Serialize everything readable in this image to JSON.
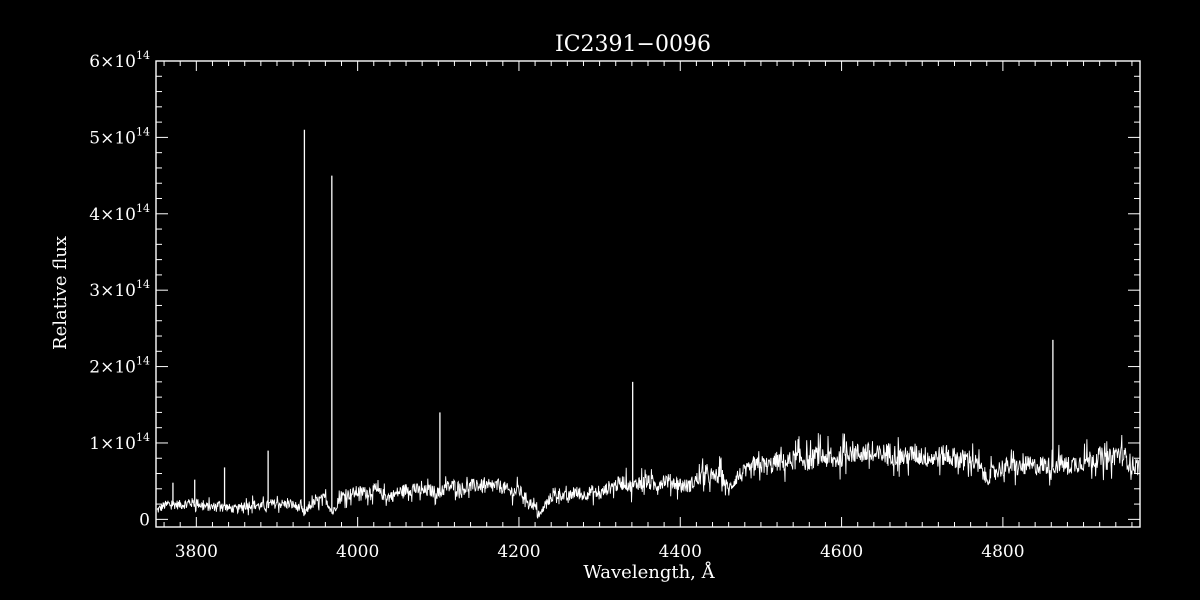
{
  "chart_data": {
    "type": "line",
    "title": "IC2391−0096",
    "xlabel": "Wavelength, Å",
    "ylabel": "Relative flux",
    "xlim": [
      3750,
      4970
    ],
    "ylim": [
      -10000000000000.0,
      600000000000000.0
    ],
    "x_ticks": [
      3800,
      4000,
      4200,
      4400,
      4600,
      4800
    ],
    "x_tick_labels": [
      "3800",
      "4000",
      "4200",
      "4400",
      "4600",
      "4800"
    ],
    "y_ticks": [
      0,
      100000000000000.0,
      200000000000000.0,
      300000000000000.0,
      400000000000000.0,
      500000000000000.0,
      600000000000000.0
    ],
    "y_tick_labels": [
      {
        "mantissa": "0",
        "exponent": ""
      },
      {
        "mantissa": "1×10",
        "exponent": "14"
      },
      {
        "mantissa": "2×10",
        "exponent": "14"
      },
      {
        "mantissa": "3×10",
        "exponent": "14"
      },
      {
        "mantissa": "4×10",
        "exponent": "14"
      },
      {
        "mantissa": "5×10",
        "exponent": "14"
      },
      {
        "mantissa": "6×10",
        "exponent": "14"
      }
    ],
    "grid": false,
    "line_color": "#ffffff",
    "background": "#000000",
    "series": [
      {
        "wavelength": [
          3752,
          3760,
          3770,
          3780,
          3790,
          3800,
          3810,
          3820,
          3830,
          3840,
          3850,
          3860,
          3870,
          3880,
          3890,
          3900,
          3910,
          3920,
          3930,
          3934,
          3940,
          3950,
          3960,
          3969,
          3975,
          3980,
          3990,
          4000,
          4010,
          4020,
          4030,
          4040,
          4050,
          4060,
          4070,
          4080,
          4090,
          4101,
          4110,
          4120,
          4130,
          4140,
          4150,
          4160,
          4170,
          4180,
          4190,
          4200,
          4210,
          4220,
          4226,
          4232,
          4240,
          4250,
          4260,
          4270,
          4280,
          4290,
          4300,
          4310,
          4320,
          4330,
          4340,
          4350,
          4360,
          4370,
          4380,
          4390,
          4400,
          4410,
          4420,
          4430,
          4440,
          4450,
          4460,
          4470,
          4480,
          4490,
          4500,
          4510,
          4520,
          4530,
          4540,
          4550,
          4560,
          4570,
          4580,
          4590,
          4600,
          4610,
          4620,
          4630,
          4640,
          4650,
          4660,
          4670,
          4680,
          4690,
          4700,
          4710,
          4720,
          4730,
          4740,
          4750,
          4760,
          4770,
          4780,
          4790,
          4800,
          4810,
          4820,
          4830,
          4840,
          4850,
          4861,
          4870,
          4880,
          4890,
          4900,
          4910,
          4920,
          4930,
          4940,
          4950,
          4960,
          4970
        ],
        "flux": [
          12000000000000.0,
          18000000000000.0,
          20000000000000.0,
          19000000000000.0,
          21000000000000.0,
          22000000000000.0,
          17000000000000.0,
          16000000000000.0,
          20000000000000.0,
          15000000000000.0,
          13000000000000.0,
          18000000000000.0,
          20000000000000.0,
          17000000000000.0,
          19000000000000.0,
          21000000000000.0,
          20000000000000.0,
          19000000000000.0,
          14000000000000.0,
          6000000000000.0,
          17000000000000.0,
          24000000000000.0,
          28000000000000.0,
          8000000000000.0,
          22000000000000.0,
          30000000000000.0,
          33000000000000.0,
          36000000000000.0,
          35000000000000.0,
          38000000000000.0,
          33000000000000.0,
          29000000000000.0,
          35000000000000.0,
          39000000000000.0,
          40000000000000.0,
          36000000000000.0,
          38000000000000.0,
          34000000000000.0,
          42000000000000.0,
          44000000000000.0,
          40000000000000.0,
          43000000000000.0,
          45000000000000.0,
          41000000000000.0,
          44000000000000.0,
          42000000000000.0,
          36000000000000.0,
          38000000000000.0,
          26000000000000.0,
          16000000000000.0,
          4000000000000.0,
          18000000000000.0,
          29000000000000.0,
          34000000000000.0,
          28000000000000.0,
          36000000000000.0,
          31000000000000.0,
          37000000000000.0,
          32000000000000.0,
          41000000000000.0,
          45000000000000.0,
          49000000000000.0,
          42000000000000.0,
          50000000000000.0,
          48000000000000.0,
          44000000000000.0,
          52000000000000.0,
          49000000000000.0,
          46000000000000.0,
          43000000000000.0,
          52000000000000.0,
          58000000000000.0,
          54000000000000.0,
          60000000000000.0,
          38000000000000.0,
          56000000000000.0,
          61000000000000.0,
          66000000000000.0,
          72000000000000.0,
          69000000000000.0,
          76000000000000.0,
          73000000000000.0,
          78000000000000.0,
          80000000000000.0,
          75000000000000.0,
          84000000000000.0,
          81000000000000.0,
          76000000000000.0,
          83000000000000.0,
          90000000000000.0,
          86000000000000.0,
          88000000000000.0,
          82000000000000.0,
          85000000000000.0,
          87000000000000.0,
          83000000000000.0,
          81000000000000.0,
          86000000000000.0,
          83000000000000.0,
          80000000000000.0,
          82000000000000.0,
          84000000000000.0,
          81000000000000.0,
          78000000000000.0,
          79000000000000.0,
          69000000000000.0,
          54000000000000.0,
          63000000000000.0,
          68000000000000.0,
          70000000000000.0,
          67000000000000.0,
          71000000000000.0,
          69000000000000.0,
          72000000000000.0,
          68000000000000.0,
          74000000000000.0,
          70000000000000.0,
          73000000000000.0,
          76000000000000.0,
          79000000000000.0,
          82000000000000.0,
          77000000000000.0,
          86000000000000.0,
          83000000000000.0,
          71000000000000.0,
          69000000000000.0
        ]
      }
    ],
    "emission_lines": [
      {
        "wavelength": 3771,
        "peak": 48000000000000.0
      },
      {
        "wavelength": 3798,
        "peak": 52000000000000.0
      },
      {
        "wavelength": 3835,
        "peak": 68000000000000.0
      },
      {
        "wavelength": 3889,
        "peak": 90000000000000.0
      },
      {
        "wavelength": 3934,
        "peak": 510000000000000.0
      },
      {
        "wavelength": 3968,
        "peak": 450000000000000.0
      },
      {
        "wavelength": 4102,
        "peak": 140000000000000.0
      },
      {
        "wavelength": 4341,
        "peak": 180000000000000.0
      },
      {
        "wavelength": 4862,
        "peak": 235000000000000.0
      }
    ]
  }
}
